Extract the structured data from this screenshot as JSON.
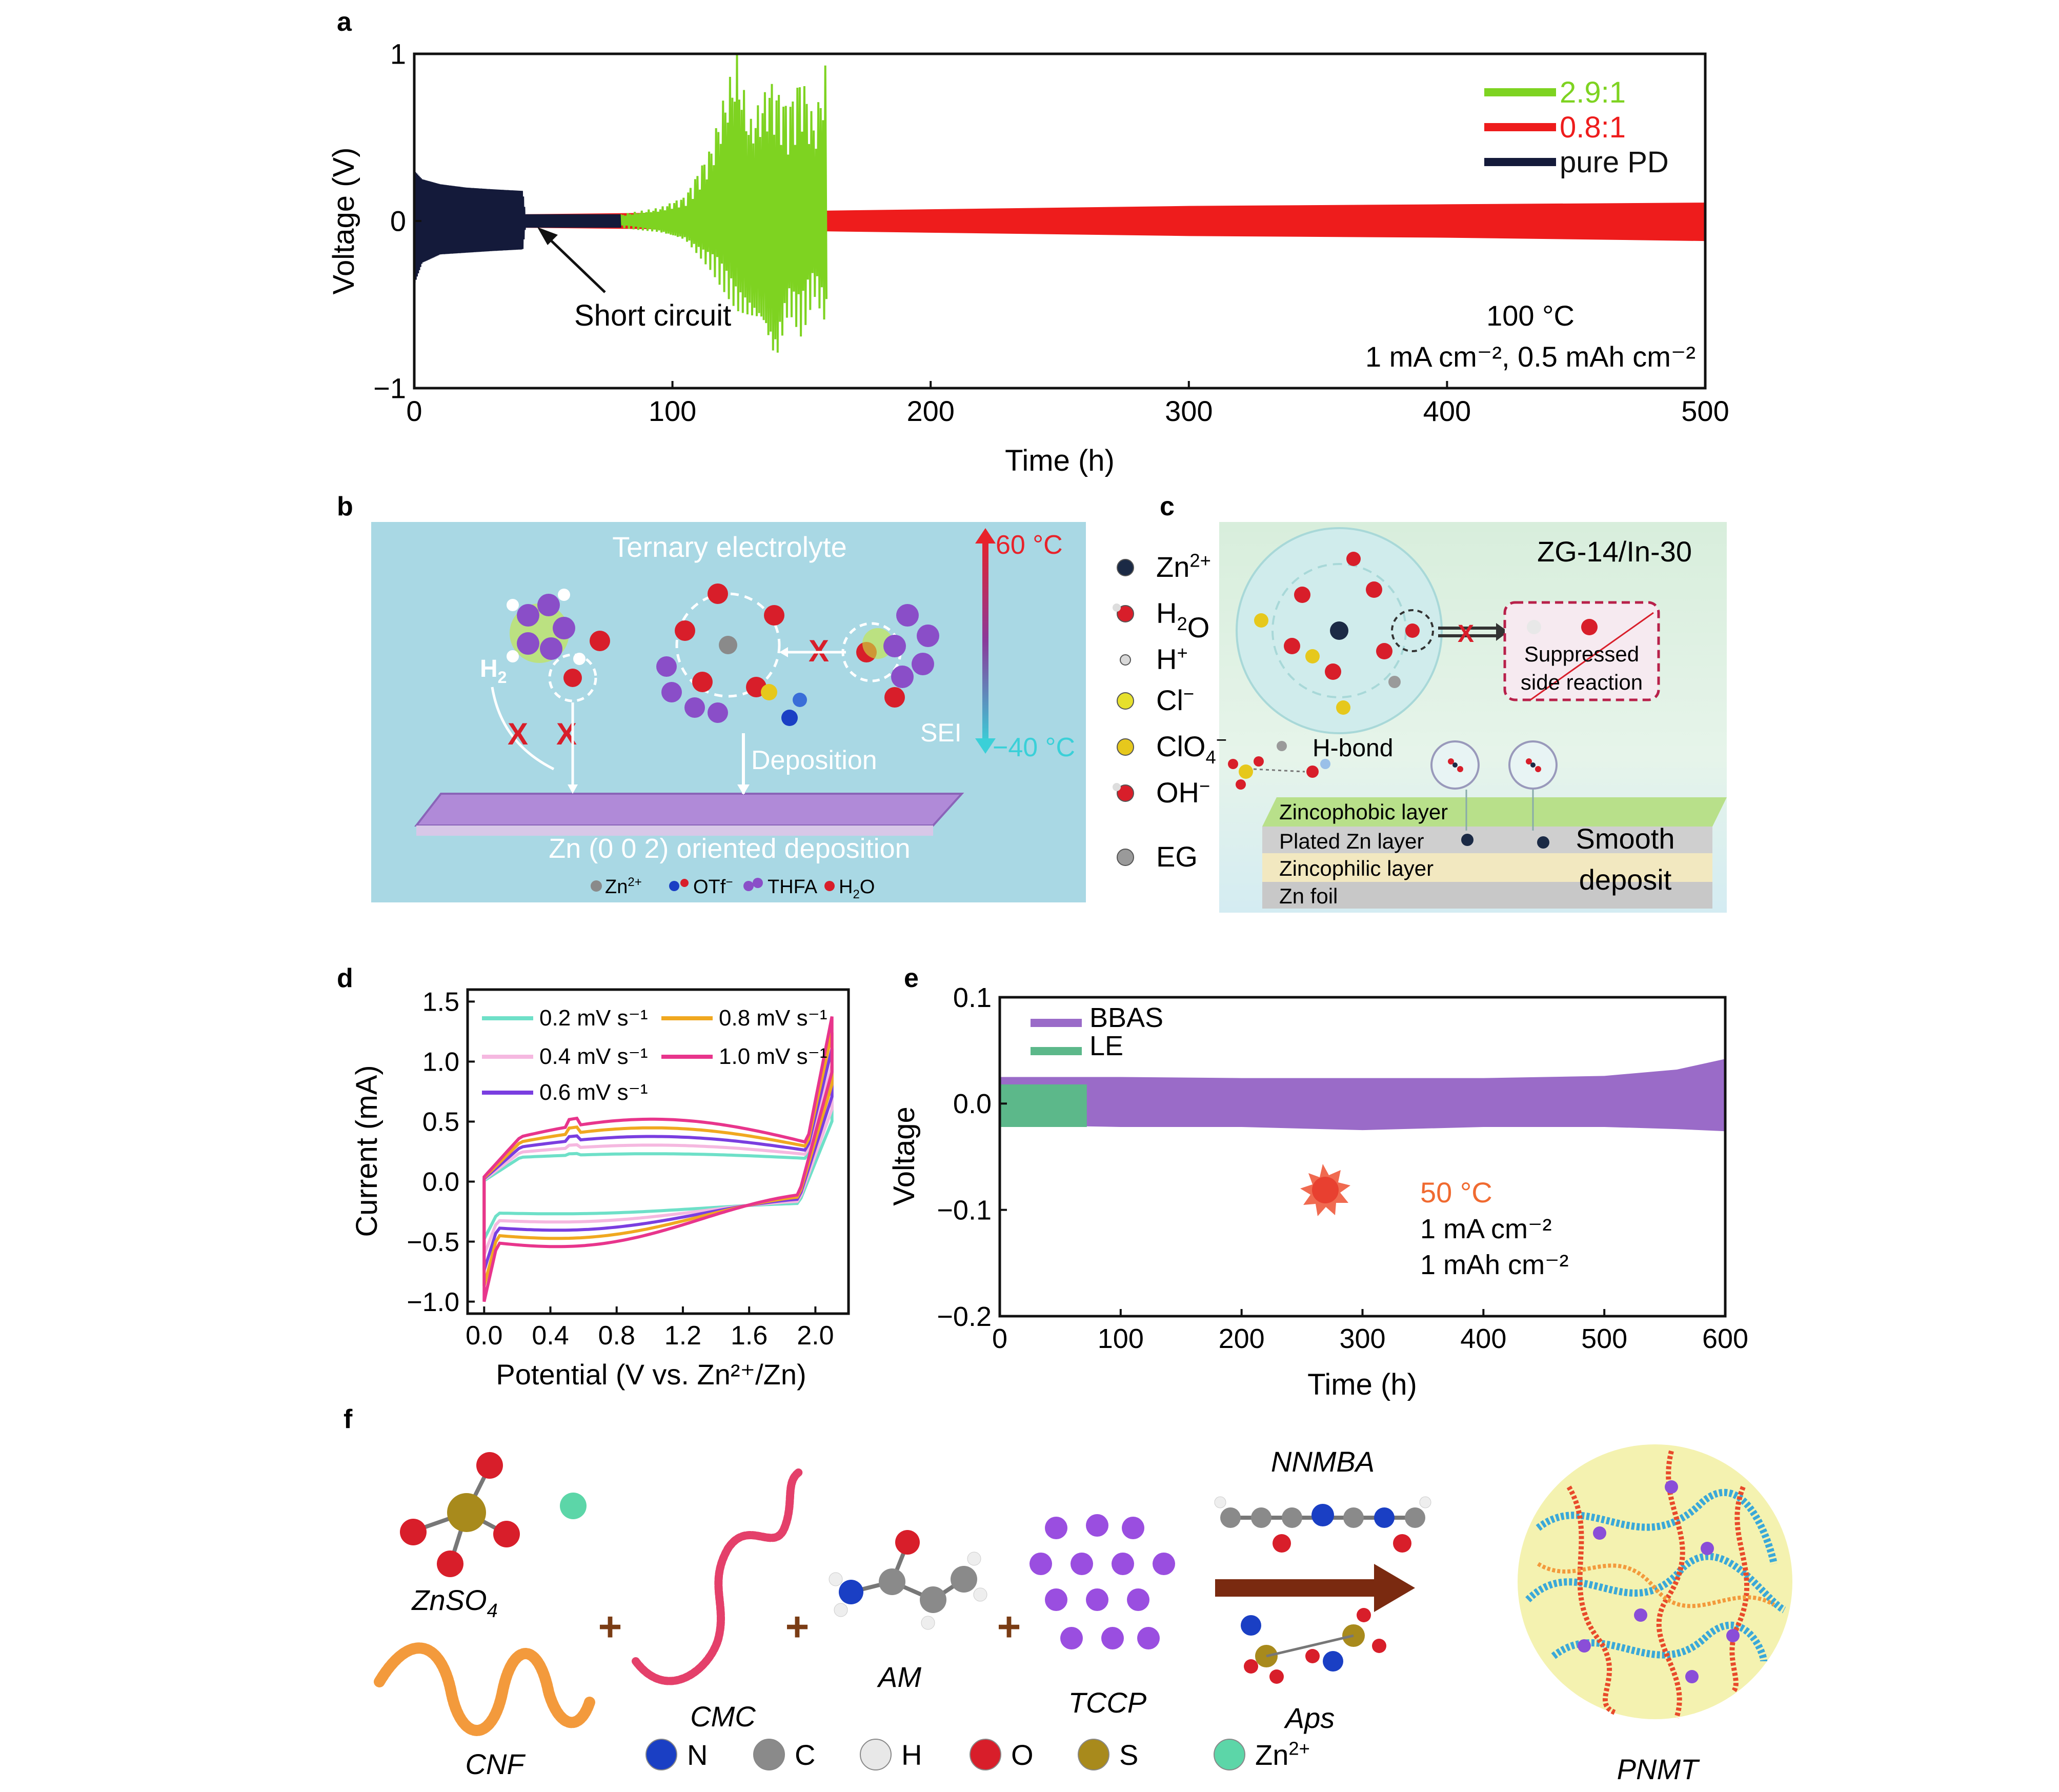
{
  "panels": {
    "a": {
      "letter": "a"
    },
    "b": {
      "letter": "b",
      "title": "Ternary electrolyte",
      "temp_high": "60 °C",
      "temp_low": "−40 °C",
      "h2_label": "H2",
      "h2_main": "H",
      "h2_sub": "2",
      "deposition": "Deposition",
      "sei": "SEI",
      "plane": "Zn (0 0 2) oriented deposition",
      "legend": [
        {
          "label": "Zn2+",
          "base": "Zn",
          "sup": "2+"
        },
        {
          "label": "OTf−",
          "base": "OTf",
          "sup": "−"
        },
        {
          "label": "THFA",
          "base": "THFA"
        },
        {
          "label": "H2O",
          "base": "H",
          "sub": "2",
          "tail": "O"
        }
      ]
    },
    "c": {
      "letter": "c",
      "title": "ZG-14/In-30",
      "species": [
        {
          "label": "Zn2+",
          "base": "Zn",
          "sup": "2+",
          "color": "#1b2a45"
        },
        {
          "label": "H2O",
          "base": "H",
          "sub": "2",
          "tail": "O",
          "color": "#d81e2a"
        },
        {
          "label": "H+",
          "base": "H",
          "sup": "+",
          "color": "#d8d8d8"
        },
        {
          "label": "Cl−",
          "base": "Cl",
          "sup": "−",
          "color": "#e6e02c"
        },
        {
          "label": "ClO4−",
          "base": "ClO",
          "sub": "4",
          "sup": "−",
          "color": "#e6c81c"
        },
        {
          "label": "OH−",
          "base": "OH",
          "sup": "−",
          "color": "#d81e2a"
        },
        {
          "label": "EG",
          "base": "EG",
          "color": "#9a9a9a"
        }
      ],
      "suppressed": "Suppressed",
      "side_reaction": "side reaction",
      "hbond": "H-bond",
      "layers": [
        "Zincophobic layer",
        "Plated Zn layer",
        "Zincophilic layer",
        "Zn foil"
      ],
      "smooth": "Smooth",
      "deposit": "deposit"
    },
    "d": {
      "letter": "d"
    },
    "e": {
      "letter": "e",
      "temp": "50 °C",
      "current": "1 mA cm⁻²",
      "capacity": "1 mAh cm⁻²"
    },
    "f": {
      "letter": "f",
      "labels": {
        "znso4": "ZnSO4",
        "znso4_main": "ZnSO",
        "znso4_sub": "4",
        "cnf": "CNF",
        "cmc": "CMC",
        "am": "AM",
        "tccp": "TCCP",
        "nnmba": "NNMBA",
        "aps": "Aps",
        "pnmt": "PNMT"
      },
      "plus": "+",
      "atoms": [
        {
          "label": "N",
          "base": "N",
          "color": "#1a3fc4"
        },
        {
          "label": "C",
          "base": "C",
          "color": "#8a8a8a"
        },
        {
          "label": "H",
          "base": "H",
          "color": "#e8e8e8"
        },
        {
          "label": "O",
          "base": "O",
          "color": "#d81e2a"
        },
        {
          "label": "S",
          "base": "S",
          "color": "#a88a1c"
        },
        {
          "label": "Zn2+",
          "base": "Zn",
          "sup": "2+",
          "color": "#5cd6a8"
        }
      ]
    }
  },
  "chart_data": [
    {
      "id": "a",
      "type": "line",
      "xlabel": "Time (h)",
      "ylabel": "Voltage (V)",
      "xlim": [
        0,
        500
      ],
      "ylim": [
        -1,
        1
      ],
      "xticks": [
        0,
        100,
        200,
        300,
        400,
        500
      ],
      "yticks": [
        -1,
        0,
        1
      ],
      "xtick_labels": [
        "0",
        "100",
        "200",
        "300",
        "400",
        "500"
      ],
      "ytick_labels": [
        "−1",
        "0",
        "1"
      ],
      "legend_position": "top-right",
      "series": [
        {
          "name": "2.9:1",
          "color": "#7ed321",
          "x_range": [
            80,
            160
          ],
          "envelope": [
            [
              80,
              0.04
            ],
            [
              95,
              0.08
            ],
            [
              105,
              0.15
            ],
            [
              115,
              0.45
            ],
            [
              120,
              0.75
            ],
            [
              125,
              1.0
            ],
            [
              130,
              0.6
            ],
            [
              138,
              0.85
            ],
            [
              145,
              0.7
            ],
            [
              150,
              0.9
            ],
            [
              155,
              0.6
            ],
            [
              160,
              1.0
            ]
          ],
          "envelope_min": [
            [
              80,
              -0.04
            ],
            [
              95,
              -0.07
            ],
            [
              105,
              -0.12
            ],
            [
              115,
              -0.3
            ],
            [
              125,
              -0.55
            ],
            [
              135,
              -0.65
            ],
            [
              140,
              -0.88
            ],
            [
              145,
              -0.55
            ],
            [
              150,
              -0.7
            ],
            [
              155,
              -0.45
            ],
            [
              160,
              -0.65
            ]
          ]
        },
        {
          "name": "0.8:1",
          "color": "#ee1c1c",
          "x_range": [
            40,
            500
          ],
          "envelope": [
            [
              40,
              0.04
            ],
            [
              100,
              0.05
            ],
            [
              200,
              0.07
            ],
            [
              300,
              0.09
            ],
            [
              400,
              0.1
            ],
            [
              500,
              0.11
            ]
          ],
          "envelope_min": [
            [
              40,
              -0.04
            ],
            [
              100,
              -0.05
            ],
            [
              200,
              -0.07
            ],
            [
              300,
              -0.09
            ],
            [
              400,
              -0.1
            ],
            [
              500,
              -0.12
            ]
          ]
        },
        {
          "name": "pure PD",
          "color": "#141a3a",
          "x_range": [
            0,
            80
          ],
          "envelope": [
            [
              0,
              0.3
            ],
            [
              3,
              0.25
            ],
            [
              10,
              0.22
            ],
            [
              20,
              0.2
            ],
            [
              30,
              0.19
            ],
            [
              42,
              0.18
            ],
            [
              43,
              0.04
            ],
            [
              80,
              0.04
            ]
          ],
          "envelope_min": [
            [
              0,
              -0.38
            ],
            [
              3,
              -0.25
            ],
            [
              10,
              -0.2
            ],
            [
              20,
              -0.19
            ],
            [
              30,
              -0.18
            ],
            [
              42,
              -0.17
            ],
            [
              43,
              -0.04
            ],
            [
              80,
              -0.04
            ]
          ]
        }
      ],
      "annotations": [
        {
          "text": "Short circuit",
          "x": 48,
          "y": 0.0
        },
        {
          "text": "100 °C"
        },
        {
          "text": "1 mA cm⁻², 0.5 mAh cm⁻²"
        }
      ]
    },
    {
      "id": "d",
      "type": "line",
      "xlabel": "Potential (V vs. Zn²⁺/Zn)",
      "ylabel": "Current (mA)",
      "xlim": [
        -0.1,
        2.2
      ],
      "ylim": [
        -1.1,
        1.6
      ],
      "xticks": [
        0.0,
        0.4,
        0.8,
        1.2,
        1.6,
        2.0
      ],
      "yticks": [
        -1.0,
        -0.5,
        0.0,
        0.5,
        1.0,
        1.5
      ],
      "xtick_labels": [
        "0.0",
        "0.4",
        "0.8",
        "1.2",
        "1.6",
        "2.0"
      ],
      "ytick_labels": [
        "−1.0",
        "−0.5",
        "0.0",
        "0.5",
        "1.0",
        "1.5"
      ],
      "legend_position": "top",
      "series": [
        {
          "name": "0.2 mV s⁻¹",
          "color": "#6ee0c8",
          "amp": 0.2
        },
        {
          "name": "0.4 mV s⁻¹",
          "color": "#f5b8e0",
          "amp": 0.4
        },
        {
          "name": "0.6 mV s⁻¹",
          "color": "#7a3ee0",
          "amp": 0.6
        },
        {
          "name": "0.8 mV s⁻¹",
          "color": "#f0a820",
          "amp": 0.8
        },
        {
          "name": "1.0 mV s⁻¹",
          "color": "#e8358c",
          "amp": 1.0
        }
      ]
    },
    {
      "id": "e",
      "type": "area",
      "xlabel": "Time (h)",
      "ylabel": "Voltage",
      "xlim": [
        0,
        600
      ],
      "ylim": [
        -0.2,
        0.1
      ],
      "xticks": [
        0,
        100,
        200,
        300,
        400,
        500,
        600
      ],
      "yticks": [
        -0.2,
        -0.1,
        0.0,
        0.1
      ],
      "xtick_labels": [
        "0",
        "100",
        "200",
        "300",
        "400",
        "500",
        "600"
      ],
      "ytick_labels": [
        "−0.2",
        "−0.1",
        "0.0",
        "0.1"
      ],
      "legend_position": "top-left",
      "series": [
        {
          "name": "BBAS",
          "color": "#9a6bc8",
          "x_range": [
            0,
            600
          ],
          "upper": [
            [
              0,
              0.025
            ],
            [
              100,
              0.025
            ],
            [
              200,
              0.024
            ],
            [
              300,
              0.024
            ],
            [
              400,
              0.024
            ],
            [
              500,
              0.026
            ],
            [
              560,
              0.032
            ],
            [
              600,
              0.042
            ]
          ],
          "lower": [
            [
              0,
              -0.02
            ],
            [
              100,
              -0.022
            ],
            [
              200,
              -0.022
            ],
            [
              300,
              -0.025
            ],
            [
              400,
              -0.022
            ],
            [
              500,
              -0.022
            ],
            [
              560,
              -0.024
            ],
            [
              600,
              -0.026
            ]
          ]
        },
        {
          "name": "LE",
          "color": "#5cb88a",
          "x_range": [
            0,
            72
          ],
          "upper": [
            [
              0,
              0.018
            ],
            [
              72,
              0.018
            ]
          ],
          "lower": [
            [
              0,
              -0.022
            ],
            [
              72,
              -0.022
            ]
          ]
        }
      ]
    }
  ]
}
